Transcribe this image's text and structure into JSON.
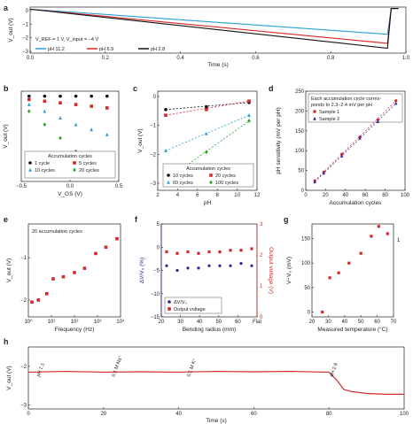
{
  "figure": {
    "panels": {
      "a": {
        "letter": "a",
        "ylabel": "V_out (V)",
        "xlabel": "Time (s)",
        "annotation": "V_REF = 1 V, V_input = −4 V",
        "xticks": [
          "0.0",
          "0.2",
          "0.4",
          "0.6",
          "0.8",
          "1.0"
        ],
        "yticks": [
          "0",
          "−1",
          "−2",
          "−3"
        ],
        "legend": [
          {
            "label": "pH 11.2",
            "color": "#2a9fd6"
          },
          {
            "label": "pH 6.9",
            "color": "#d62728"
          },
          {
            "label": "pH 2.8",
            "color": "#111111"
          }
        ]
      },
      "b": {
        "letter": "b",
        "ylabel": "V_out (V)",
        "xlabel": "V_GS (V)",
        "xticks": [
          "−0.5",
          "0.0",
          "0.5"
        ],
        "legend_title": "Accumulation cycles",
        "legend": [
          {
            "label": "1 cycle",
            "color": "#111111",
            "shape": "circle"
          },
          {
            "label": "5 cycles",
            "color": "#d62728",
            "shape": "square"
          },
          {
            "label": "10 cycles",
            "color": "#2a9fd6",
            "shape": "triangle"
          },
          {
            "label": "20 cycles",
            "color": "#2ca02c",
            "shape": "diamond"
          }
        ]
      },
      "c": {
        "letter": "c",
        "ylabel": "V_out (V)",
        "xlabel": "pH",
        "xticks": [
          "2",
          "4",
          "6",
          "8",
          "10",
          "12"
        ],
        "yticks": [
          "0",
          "−1",
          "−2",
          "−3"
        ],
        "legend_title": "Accumulation cycles",
        "legend": [
          {
            "label": "10 cycles",
            "color": "#111111"
          },
          {
            "label": "20 cycles",
            "color": "#d62728"
          },
          {
            "label": "60 cycles",
            "color": "#2a9fd6"
          },
          {
            "label": "100 cycles",
            "color": "#2ca02c"
          }
        ]
      },
      "d": {
        "letter": "d",
        "ylabel": "pH sensitivity (mV per pH)",
        "xlabel": "Accumulation cycles",
        "xticks": [
          "0",
          "20",
          "40",
          "60",
          "80",
          "100"
        ],
        "yticks": [
          "0",
          "50",
          "100",
          "150",
          "200",
          "250"
        ],
        "note": "Each accumulation cycle corres-ponds to 2.3–2.4 mV per pH",
        "legend": [
          {
            "label": "Sample 1",
            "color": "#d62728"
          },
          {
            "label": "Sample 2",
            "color": "#2b2b8c"
          }
        ]
      },
      "e": {
        "letter": "e",
        "ylabel": "V_out (V)",
        "xlabel": "Frequency (Hz)",
        "xticks": [
          "10⁰",
          "10¹",
          "10²",
          "10³",
          "10⁴"
        ],
        "yticks": [
          "−1",
          "−2"
        ],
        "note": "20 accumulation cycles"
      },
      "f": {
        "letter": "f",
        "ylabel": "ΔV/V₀ (%)",
        "y2label": "Output voltage (V)",
        "xlabel": "Bending radius (mm)",
        "xticks": [
          "20",
          "30",
          "40",
          "50",
          "60",
          "Flat"
        ],
        "yticks": [
          "5",
          "0",
          "−5",
          "−10",
          "−15"
        ],
        "y2ticks": [
          "3",
          "2",
          "1",
          "0"
        ],
        "legend": [
          {
            "label": "ΔV/V₀",
            "color": "#2b2b8c"
          },
          {
            "label": "Output voltage",
            "color": "#d62728"
          }
        ]
      },
      "g": {
        "letter": "g",
        "ylabel": "V−V₀ (mV)",
        "xlabel": "Measured temperature (°C)",
        "xticks": [
          "20",
          "30",
          "40",
          "50",
          "60",
          "70"
        ],
        "yticks": [
          "0",
          "50",
          "100",
          "150"
        ],
        "y2tick": "1"
      },
      "h": {
        "letter": "h",
        "ylabel": "V_out (V)",
        "xlabel": "Time (s)",
        "xticks": [
          "0",
          "20",
          "40",
          "60",
          "80",
          "100"
        ],
        "yticks": [
          "−2",
          "−3"
        ],
        "annotations": [
          "pH 7.1",
          "0.1 M Na⁺",
          "0.1 M K⁺",
          "pH 2.8"
        ]
      }
    }
  },
  "chart_data": [
    {
      "panel": "a",
      "type": "line",
      "xlabel": "Time (s)",
      "ylabel": "V_out (V)",
      "xlim": [
        0,
        1.02
      ],
      "ylim": [
        -3.2,
        0.1
      ],
      "series": [
        {
          "name": "pH 11.2",
          "x": [
            0,
            0.97,
            0.98,
            1.0
          ],
          "y": [
            -0.05,
            -1.85,
            0,
            0
          ]
        },
        {
          "name": "pH 6.9",
          "x": [
            0,
            0.97,
            0.98,
            1.0
          ],
          "y": [
            -0.05,
            -2.5,
            0,
            0
          ]
        },
        {
          "name": "pH 2.8",
          "x": [
            0,
            0.97,
            0.98,
            1.0
          ],
          "y": [
            -0.05,
            -2.85,
            0,
            0
          ]
        }
      ]
    },
    {
      "panel": "b",
      "type": "scatter",
      "xlabel": "V_GS (V)",
      "ylabel": "V_out (V)",
      "series": [
        {
          "name": "1 cycle",
          "x": [
            -0.4,
            -0.2,
            0,
            0.2,
            0.4,
            0.6
          ],
          "y": [
            -0.05,
            -0.05,
            -0.05,
            -0.05,
            -0.05,
            -0.05
          ]
        },
        {
          "name": "5 cycles",
          "x": [
            -0.4,
            -0.2,
            0,
            0.2,
            0.4,
            0.6
          ],
          "y": [
            -0.15,
            -0.2,
            -0.25,
            -0.3,
            -0.35,
            -0.4
          ]
        },
        {
          "name": "10 cycles",
          "x": [
            -0.4,
            -0.2,
            0,
            0.2,
            0.4,
            0.6
          ],
          "y": [
            -0.3,
            -0.5,
            -0.7,
            -0.9,
            -1.05,
            -1.2
          ]
        },
        {
          "name": "20 cycles",
          "x": [
            -0.4,
            -0.2,
            0,
            0.2,
            0.4,
            0.6
          ],
          "y": [
            -0.5,
            -0.9,
            -1.3,
            -1.7,
            -2.05,
            -2.4
          ]
        }
      ]
    },
    {
      "panel": "c",
      "type": "scatter",
      "xlabel": "pH",
      "ylabel": "V_out (V)",
      "xlim": [
        2,
        12
      ],
      "ylim": [
        -3.2,
        0.3
      ],
      "series": [
        {
          "name": "10 cycles",
          "x": [
            2.8,
            6.9,
            11.2
          ],
          "y": [
            -0.35,
            -0.25,
            -0.1
          ]
        },
        {
          "name": "20 cycles",
          "x": [
            2.8,
            6.9,
            11.2
          ],
          "y": [
            -0.55,
            -0.35,
            -0.05
          ]
        },
        {
          "name": "60 cycles",
          "x": [
            2.8,
            6.9,
            11.2
          ],
          "y": [
            -1.8,
            -1.2,
            -0.55
          ]
        },
        {
          "name": "100 cycles",
          "x": [
            2.8,
            6.9,
            11.2
          ],
          "y": [
            -2.85,
            -1.85,
            -0.75
          ]
        }
      ]
    },
    {
      "panel": "d",
      "type": "scatter",
      "xlabel": "Accumulation cycles",
      "ylabel": "pH sensitivity (mV per pH)",
      "xlim": [
        0,
        110
      ],
      "ylim": [
        0,
        260
      ],
      "series": [
        {
          "name": "Sample 1",
          "x": [
            10,
            20,
            40,
            60,
            80,
            100
          ],
          "y": [
            25,
            48,
            95,
            140,
            185,
            235
          ]
        },
        {
          "name": "Sample 2",
          "x": [
            10,
            20,
            40,
            60,
            80,
            100
          ],
          "y": [
            22,
            45,
            90,
            137,
            180,
            228
          ]
        }
      ]
    },
    {
      "panel": "e",
      "type": "scatter",
      "xlabel": "Frequency (Hz)",
      "ylabel": "V_out (V)",
      "ylim": [
        -2.4,
        -0.2
      ],
      "series": [
        {
          "name": "",
          "x": [
            1,
            2,
            5,
            10,
            30,
            100,
            300,
            1000,
            3000,
            10000
          ],
          "y": [
            -2.05,
            -2.0,
            -1.85,
            -1.5,
            -1.45,
            -1.35,
            -1.25,
            -0.9,
            -0.75,
            -0.55
          ]
        }
      ]
    },
    {
      "panel": "f",
      "type": "scatter",
      "xlabel": "Bending radius (mm)",
      "ylabel": "ΔV/V₀ (%)",
      "series": [
        {
          "name": "ΔV/V₀",
          "x": [
            15,
            20,
            25,
            30,
            35,
            40,
            45,
            50,
            60
          ],
          "y": [
            -4,
            -5,
            -4.5,
            -4.5,
            -4,
            -4,
            -4,
            -3.5,
            -4
          ]
        },
        {
          "name": "Output voltage",
          "x": [
            15,
            20,
            25,
            30,
            35,
            40,
            45,
            50,
            60
          ],
          "y": [
            2.1,
            2.05,
            2.1,
            2.05,
            2.1,
            2.1,
            2.15,
            2.15,
            2.2
          ]
        }
      ]
    },
    {
      "panel": "g",
      "type": "scatter",
      "xlabel": "Measured temperature (°C)",
      "ylabel": "V−V₀ (mV)",
      "xlim": [
        15,
        70
      ],
      "ylim": [
        -10,
        180
      ],
      "series": [
        {
          "name": "",
          "x": [
            22,
            27,
            33,
            40,
            48,
            55,
            60,
            66
          ],
          "y": [
            0,
            70,
            80,
            100,
            120,
            155,
            175,
            160
          ]
        }
      ]
    },
    {
      "panel": "h",
      "type": "line",
      "xlabel": "Time (s)",
      "ylabel": "V_out (V)",
      "xlim": [
        0,
        100
      ],
      "ylim": [
        -3.1,
        -1.5
      ],
      "series": [
        {
          "name": "",
          "x": [
            0,
            10,
            20,
            30,
            40,
            50,
            60,
            70,
            80,
            82,
            84,
            86,
            90,
            95,
            100
          ],
          "y": [
            -2.15,
            -2.13,
            -2.15,
            -2.14,
            -2.15,
            -2.13,
            -2.14,
            -2.13,
            -2.15,
            -2.35,
            -2.6,
            -2.65,
            -2.7,
            -2.72,
            -2.72
          ]
        }
      ]
    }
  ]
}
